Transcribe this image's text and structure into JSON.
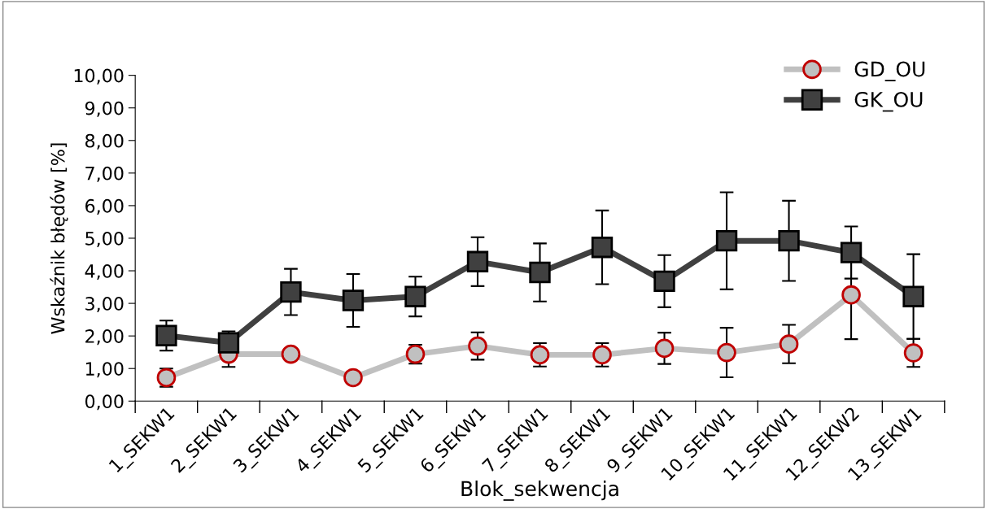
{
  "chart_data": {
    "type": "line",
    "xlabel": "Blok_sekwencja",
    "ylabel": "Wskaźnik błędów [%]",
    "categories": [
      "1_SEKW1",
      "2_SEKW1",
      "3_SEKW1",
      "4_SEKW1",
      "5_SEKW1",
      "6_SEKW1",
      "7_SEKW1",
      "8_SEKW1",
      "9_SEKW1",
      "10_SEKW1",
      "11_SEKW1",
      "12_SEKW2",
      "13_SEKW1"
    ],
    "series": [
      {
        "name": "GD_OU",
        "color": "#c0c0c0",
        "marker": "circle",
        "values": [
          0.72,
          1.44,
          1.44,
          0.72,
          1.44,
          1.69,
          1.42,
          1.42,
          1.62,
          1.49,
          1.75,
          3.26,
          1.48
        ],
        "errors": [
          0.28,
          0.39,
          null,
          null,
          0.29,
          0.42,
          0.36,
          0.36,
          0.48,
          0.76,
          0.59,
          1.36,
          0.43
        ]
      },
      {
        "name": "GK_OU",
        "color": "#404040",
        "marker": "square",
        "values": [
          2.01,
          1.79,
          3.35,
          3.09,
          3.21,
          4.28,
          3.95,
          4.72,
          3.68,
          4.92,
          4.92,
          4.56,
          3.21
        ],
        "errors": [
          0.46,
          0.35,
          0.71,
          0.81,
          0.61,
          0.75,
          0.89,
          1.13,
          0.8,
          1.49,
          1.23,
          0.8,
          1.3
        ]
      }
    ],
    "ylim": [
      0,
      10
    ],
    "yticks": [
      {
        "value": 0,
        "label": "0,00"
      },
      {
        "value": 1,
        "label": "1,00"
      },
      {
        "value": 2,
        "label": "2,00"
      },
      {
        "value": 3,
        "label": "3,00"
      },
      {
        "value": 4,
        "label": "4,00"
      },
      {
        "value": 5,
        "label": "5,00"
      },
      {
        "value": 6,
        "label": "6,00"
      },
      {
        "value": 7,
        "label": "7,00"
      },
      {
        "value": 8,
        "label": "8,00"
      },
      {
        "value": 9,
        "label": "9,00"
      },
      {
        "value": 10,
        "label": "10,00"
      }
    ],
    "grid": false,
    "legend": "top right"
  }
}
